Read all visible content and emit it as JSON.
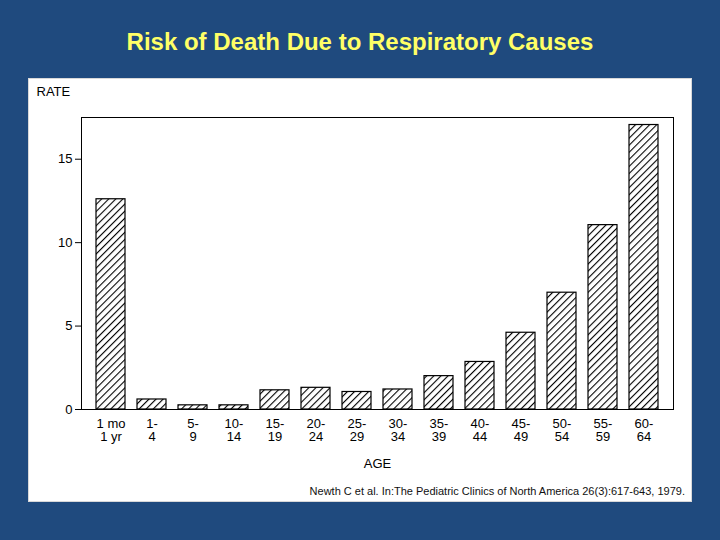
{
  "chart_data": {
    "type": "bar",
    "title": "Risk of Death Due to Respiratory Causes",
    "caption": "Newth C et al. In:The Pediatric Clinics of North America 26(3):617-643, 1979.",
    "x_label": "AGE",
    "y_label": "RATE",
    "categories": [
      "1 mo\n1 yr",
      "1-\n4",
      "5-\n9",
      "10-\n14",
      "15-\n19",
      "20-\n24",
      "25-\n29",
      "30-\n34",
      "35-\n39",
      "40-\n44",
      "45-\n49",
      "50-\n54",
      "55-\n59",
      "60-\n64"
    ],
    "values": [
      12.6,
      0.6,
      0.25,
      0.25,
      1.15,
      1.3,
      1.05,
      1.2,
      2.0,
      2.85,
      4.6,
      7.0,
      11.05,
      17.05
    ],
    "color": "#000000",
    "ylim": [
      0,
      17.5
    ],
    "yticks": [
      0,
      5,
      10,
      15
    ],
    "grid": false
  }
}
